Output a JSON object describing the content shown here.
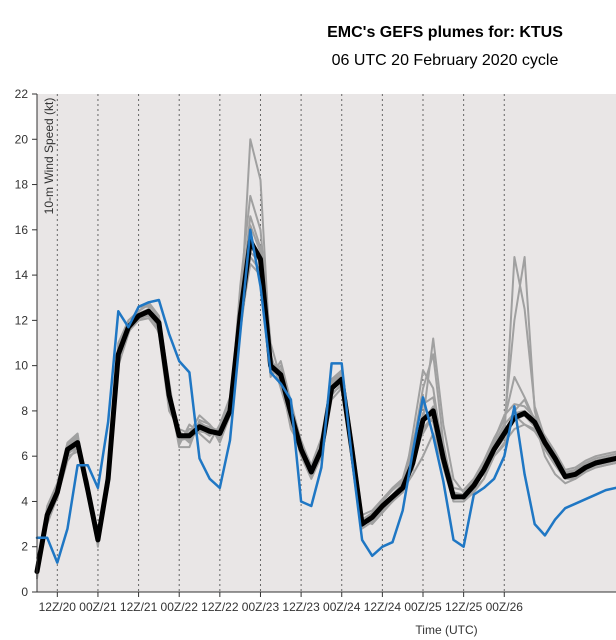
{
  "chart_data": {
    "type": "line",
    "title": "EMC's GEFS plumes for: KTUS",
    "subtitle": "06 UTC 20 February 2020 cycle",
    "xlabel": "Time (UTC)",
    "ylabel": "10-m Wind Speed (kt)",
    "ylim": [
      0,
      22
    ],
    "yticks": [
      0,
      2,
      4,
      6,
      8,
      10,
      12,
      14,
      16,
      18,
      20,
      22
    ],
    "x_units": "hours since 06Z/20",
    "xlim": [
      0,
      171
    ],
    "xticks": [
      {
        "hour": 6,
        "label": "12Z/20"
      },
      {
        "hour": 18,
        "label": "00Z/21"
      },
      {
        "hour": 30,
        "label": "12Z/21"
      },
      {
        "hour": 42,
        "label": "00Z/22"
      },
      {
        "hour": 54,
        "label": "12Z/22"
      },
      {
        "hour": 66,
        "label": "00Z/23"
      },
      {
        "hour": 78,
        "label": "12Z/23"
      },
      {
        "hour": 90,
        "label": "00Z/24"
      },
      {
        "hour": 102,
        "label": "12Z/24"
      },
      {
        "hour": 114,
        "label": "00Z/25"
      },
      {
        "hour": 126,
        "label": "12Z/25"
      },
      {
        "hour": 138,
        "label": "00Z/26"
      }
    ],
    "grid": "vertical dotted lines every 12 hours",
    "colors": {
      "plot_bg": "#e9e6e6",
      "members": "#a0a0a0",
      "control": "#1f77c4",
      "mean": "#000000",
      "grid": "#666666"
    },
    "x": [
      0,
      3,
      6,
      9,
      12,
      15,
      18,
      21,
      24,
      27,
      30,
      33,
      36,
      39,
      42,
      45,
      48,
      51,
      54,
      57,
      60,
      63,
      66,
      69,
      72,
      75,
      78,
      81,
      84,
      87,
      90,
      93,
      96,
      99,
      102,
      105,
      108,
      111,
      114,
      117,
      120,
      123,
      126,
      129,
      132,
      135,
      138,
      141,
      144,
      147,
      150,
      153,
      156,
      159,
      162,
      165,
      168,
      171
    ],
    "series": [
      {
        "name": "ensemble mean",
        "style": "mean",
        "values": [
          0.9,
          3.4,
          4.4,
          6.3,
          6.6,
          4.5,
          2.3,
          5.0,
          10.5,
          11.7,
          12.2,
          12.4,
          11.9,
          8.7,
          6.9,
          6.9,
          7.3,
          7.1,
          7.0,
          8.0,
          12.2,
          15.5,
          14.7,
          10.0,
          9.6,
          7.9,
          6.3,
          5.3,
          6.3,
          9.0,
          9.4,
          6.3,
          3.0,
          3.3,
          3.8,
          4.2,
          4.6,
          5.7,
          7.6,
          8.0,
          5.9,
          4.2,
          4.2,
          4.7,
          5.4,
          6.3,
          7.0,
          7.7,
          7.9,
          7.5,
          6.6,
          5.9,
          5.1,
          5.2,
          5.5,
          5.7,
          5.8,
          5.9
        ]
      },
      {
        "name": "control",
        "style": "control",
        "values": [
          2.4,
          2.4,
          1.3,
          2.8,
          5.6,
          5.6,
          4.6,
          7.5,
          12.4,
          11.7,
          12.6,
          12.8,
          12.9,
          11.4,
          10.2,
          9.7,
          5.9,
          5.0,
          4.6,
          6.7,
          11.4,
          16.0,
          13.5,
          9.7,
          9.2,
          8.5,
          4.0,
          3.8,
          5.5,
          10.1,
          10.1,
          5.9,
          2.3,
          1.6,
          2.0,
          2.2,
          3.6,
          6.2,
          8.6,
          6.9,
          4.9,
          2.3,
          2.0,
          4.3,
          4.6,
          5.0,
          6.0,
          8.2,
          5.2,
          3.0,
          2.5,
          3.2,
          3.7,
          3.9,
          4.1,
          4.3,
          4.5,
          4.6
        ]
      },
      {
        "name": "member 1",
        "style": "member",
        "values": [
          1.5,
          3.0,
          4.2,
          5.8,
          6.4,
          4.8,
          2.0,
          5.5,
          10.2,
          11.5,
          12.0,
          12.1,
          11.5,
          8.2,
          7.0,
          6.6,
          7.5,
          7.2,
          6.9,
          8.4,
          12.8,
          16.2,
          15.0,
          10.5,
          9.0,
          7.5,
          6.0,
          5.0,
          6.0,
          8.5,
          9.0,
          6.0,
          3.2,
          3.0,
          3.5,
          4.0,
          4.5,
          6.0,
          7.9,
          7.5,
          5.5,
          4.0,
          4.0,
          4.5,
          5.0,
          6.0,
          6.5,
          8.0,
          8.5,
          7.5,
          6.0,
          5.2,
          4.8,
          5.0,
          5.3,
          5.5,
          5.6,
          5.7
        ]
      },
      {
        "name": "member 2",
        "style": "member",
        "values": [
          0.8,
          3.8,
          4.8,
          6.6,
          7.0,
          4.2,
          2.6,
          4.8,
          11.0,
          12.0,
          12.4,
          12.8,
          12.2,
          9.3,
          6.5,
          7.4,
          7.0,
          6.6,
          7.4,
          8.6,
          11.5,
          14.8,
          14.2,
          9.5,
          10.2,
          8.4,
          6.6,
          5.6,
          6.8,
          9.4,
          9.8,
          6.8,
          3.4,
          3.6,
          4.1,
          4.6,
          5.0,
          6.6,
          8.3,
          8.6,
          6.4,
          4.6,
          4.5,
          5.0,
          5.8,
          6.8,
          7.6,
          9.5,
          8.6,
          7.6,
          6.9,
          6.2,
          5.4,
          5.5,
          5.8,
          6.0,
          6.1,
          6.2
        ]
      },
      {
        "name": "member 3",
        "style": "member",
        "values": [
          1.2,
          3.2,
          4.6,
          6.0,
          6.2,
          4.9,
          2.2,
          5.2,
          10.0,
          11.4,
          12.6,
          12.6,
          11.4,
          8.0,
          7.2,
          7.0,
          7.8,
          7.4,
          6.6,
          7.8,
          13.5,
          17.5,
          16.0,
          11.0,
          9.4,
          7.2,
          6.4,
          5.2,
          6.2,
          8.7,
          9.2,
          6.2,
          2.8,
          3.1,
          3.7,
          4.1,
          4.4,
          5.5,
          7.2,
          7.8,
          5.8,
          4.4,
          4.1,
          4.8,
          5.2,
          6.2,
          7.4,
          12.0,
          14.8,
          8.0,
          6.3,
          5.6,
          5.0,
          5.3,
          5.6,
          5.8,
          5.9,
          6.0
        ]
      },
      {
        "name": "member 4",
        "style": "member",
        "values": [
          0.7,
          3.6,
          4.1,
          6.5,
          6.8,
          4.3,
          2.5,
          4.6,
          10.8,
          11.9,
          12.0,
          12.3,
          12.0,
          8.9,
          6.7,
          6.8,
          7.1,
          7.0,
          7.2,
          7.9,
          12.0,
          20.0,
          18.2,
          10.2,
          9.8,
          8.0,
          6.2,
          5.4,
          6.4,
          9.2,
          9.6,
          6.4,
          3.1,
          3.4,
          3.9,
          4.3,
          4.8,
          5.9,
          7.5,
          8.2,
          6.1,
          4.2,
          4.3,
          4.9,
          5.5,
          6.4,
          7.1,
          7.8,
          7.4,
          7.2,
          6.4,
          5.8,
          5.2,
          5.4,
          5.6,
          5.8,
          5.9,
          6.0
        ]
      },
      {
        "name": "member 5",
        "style": "member",
        "values": [
          1.0,
          3.3,
          4.5,
          6.2,
          6.5,
          4.6,
          2.3,
          5.1,
          10.4,
          11.6,
          12.3,
          12.5,
          11.8,
          8.6,
          6.8,
          6.9,
          7.4,
          7.3,
          7.1,
          8.1,
          12.4,
          15.8,
          14.5,
          9.8,
          9.5,
          7.8,
          6.3,
          5.3,
          6.2,
          9.0,
          9.3,
          6.3,
          2.9,
          3.3,
          3.7,
          4.2,
          4.7,
          6.2,
          7.0,
          7.8,
          5.8,
          4.1,
          4.2,
          4.6,
          5.3,
          6.2,
          6.8,
          14.8,
          12.5,
          8.2,
          6.8,
          5.9,
          5.0,
          5.1,
          5.4,
          5.6,
          5.7,
          5.8
        ]
      },
      {
        "name": "member 6",
        "style": "member",
        "values": [
          0.9,
          3.5,
          4.3,
          6.4,
          6.7,
          4.4,
          2.2,
          4.9,
          10.6,
          11.8,
          12.1,
          12.2,
          11.7,
          8.8,
          7.1,
          6.7,
          7.2,
          7.2,
          7.0,
          7.8,
          12.2,
          15.2,
          14.8,
          10.2,
          9.6,
          8.0,
          6.5,
          5.4,
          6.3,
          8.9,
          9.4,
          6.4,
          3.0,
          3.2,
          3.8,
          4.1,
          4.6,
          6.4,
          9.0,
          10.5,
          6.6,
          4.3,
          4.2,
          4.7,
          5.4,
          6.5,
          7.2,
          7.6,
          7.8,
          7.3,
          6.5,
          5.9,
          5.2,
          5.2,
          5.5,
          5.7,
          5.8,
          5.9
        ]
      },
      {
        "name": "member 7",
        "style": "member",
        "values": [
          1.3,
          3.1,
          4.4,
          6.1,
          6.4,
          4.7,
          2.4,
          5.0,
          10.3,
          11.6,
          12.2,
          12.5,
          12.0,
          8.5,
          6.9,
          7.0,
          7.3,
          7.1,
          6.8,
          8.2,
          12.6,
          16.6,
          15.2,
          10.4,
          9.3,
          7.6,
          6.1,
          5.1,
          6.1,
          8.8,
          9.1,
          6.1,
          3.1,
          3.4,
          3.6,
          4.0,
          4.4,
          7.0,
          9.8,
          9.0,
          6.0,
          4.4,
          4.3,
          4.8,
          5.6,
          6.6,
          7.4,
          7.9,
          8.0,
          7.4,
          6.7,
          6.1,
          5.3,
          5.3,
          5.6,
          5.8,
          5.9,
          6.0
        ]
      },
      {
        "name": "member 8",
        "style": "member",
        "values": [
          0.6,
          3.7,
          4.7,
          6.5,
          6.9,
          4.3,
          2.1,
          5.3,
          10.7,
          11.8,
          12.4,
          12.7,
          12.1,
          9.0,
          6.6,
          7.2,
          7.2,
          6.9,
          7.3,
          8.3,
          11.8,
          14.5,
          14.0,
          9.6,
          10.0,
          8.2,
          6.7,
          5.5,
          6.5,
          9.3,
          9.7,
          6.6,
          3.2,
          3.5,
          4.0,
          4.5,
          4.9,
          5.4,
          7.6,
          11.2,
          7.4,
          5.0,
          4.4,
          4.9,
          5.7,
          6.7,
          7.8,
          8.3,
          8.2,
          7.7,
          6.8,
          6.0,
          5.3,
          5.4,
          5.7,
          5.9,
          6.0,
          6.1
        ]
      },
      {
        "name": "member 9",
        "style": "member",
        "values": [
          1.1,
          3.4,
          4.2,
          6.3,
          6.6,
          4.5,
          2.3,
          4.7,
          10.5,
          11.7,
          12.2,
          12.4,
          11.9,
          8.7,
          6.4,
          6.4,
          7.6,
          7.4,
          6.9,
          8.0,
          12.1,
          15.0,
          14.6,
          9.9,
          9.7,
          7.9,
          6.4,
          5.2,
          6.3,
          9.1,
          9.5,
          6.5,
          3.3,
          3.1,
          3.6,
          4.0,
          4.5,
          5.2,
          6.0,
          7.0,
          5.6,
          4.0,
          4.0,
          4.4,
          5.0,
          6.0,
          6.6,
          7.2,
          7.4,
          7.1,
          6.4,
          5.7,
          5.0,
          5.0,
          5.3,
          5.5,
          5.6,
          5.7
        ]
      },
      {
        "name": "member 10",
        "style": "member",
        "values": [
          0.8,
          3.3,
          4.6,
          6.2,
          6.6,
          4.6,
          2.4,
          5.0,
          10.4,
          11.6,
          12.2,
          12.4,
          11.8,
          8.6,
          6.9,
          6.9,
          7.3,
          7.1,
          7.0,
          8.0,
          12.3,
          15.6,
          14.8,
          10.1,
          9.5,
          7.8,
          6.2,
          5.2,
          6.2,
          8.9,
          9.4,
          6.3,
          3.0,
          3.3,
          3.8,
          4.2,
          4.6,
          5.8,
          7.7,
          8.1,
          5.9,
          4.2,
          4.2,
          4.7,
          5.4,
          6.3,
          7.0,
          7.7,
          7.9,
          7.5,
          6.6,
          5.9,
          5.1,
          5.2,
          5.5,
          5.7,
          5.8,
          5.9
        ]
      }
    ]
  }
}
